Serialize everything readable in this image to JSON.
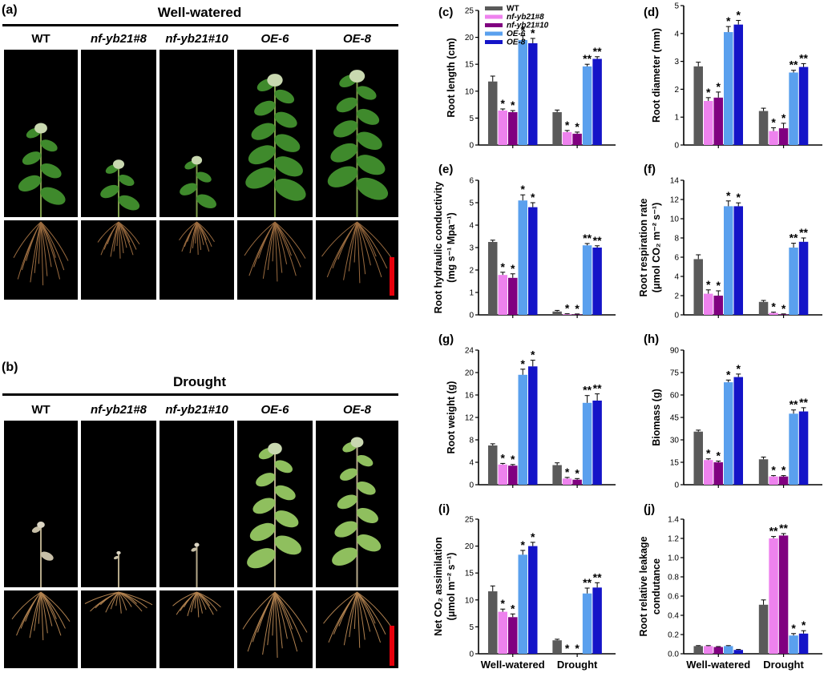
{
  "figure": {
    "conditions": [
      {
        "letter": "(a)",
        "title": "Well-watered"
      },
      {
        "letter": "(b)",
        "title": "Drought"
      }
    ],
    "genotypes": [
      "WT",
      "nf-yb21#8",
      "nf-yb21#10",
      "OE-6",
      "OE-8"
    ]
  },
  "colors": {
    "WT": "#5a5a5a",
    "nf-yb21#8": "#ee82ee",
    "nf-yb21#10": "#800080",
    "OE-6": "#5aa0ee",
    "OE-8": "#1414c8",
    "scale_bar": "#e8000b"
  },
  "chart_data": [
    {
      "letter": "(c)",
      "type": "bar",
      "ylabel": "Root length (cm)",
      "categories": [
        "Well-watered",
        "Drought"
      ],
      "ylim": [
        0,
        25
      ],
      "yticks": [
        0,
        5,
        10,
        15,
        20,
        25
      ],
      "legend": true,
      "series": [
        {
          "name": "WT",
          "values": [
            11.8,
            6.1
          ],
          "errors": [
            1.0,
            0.4
          ],
          "sig": [
            "",
            ""
          ]
        },
        {
          "name": "nf-yb21#8",
          "values": [
            6.4,
            2.4
          ],
          "errors": [
            0.3,
            0.3
          ],
          "sig": [
            "*",
            "*"
          ]
        },
        {
          "name": "nf-yb21#10",
          "values": [
            6.1,
            2.1
          ],
          "errors": [
            0.3,
            0.3
          ],
          "sig": [
            "*",
            "*"
          ]
        },
        {
          "name": "OE-6",
          "values": [
            19.5,
            14.6
          ],
          "errors": [
            0.8,
            0.4
          ],
          "sig": [
            "*",
            "**"
          ]
        },
        {
          "name": "OE-8",
          "values": [
            18.9,
            16.0
          ],
          "errors": [
            0.9,
            0.4
          ],
          "sig": [
            "*",
            "**"
          ]
        }
      ]
    },
    {
      "letter": "(d)",
      "type": "bar",
      "ylabel": "Root diameter (mm)",
      "categories": [
        "Well-watered",
        "Drought"
      ],
      "ylim": [
        0,
        5
      ],
      "yticks": [
        0,
        1,
        2,
        3,
        4,
        5
      ],
      "legend": false,
      "series": [
        {
          "name": "WT",
          "values": [
            2.82,
            1.22
          ],
          "errors": [
            0.15,
            0.1
          ],
          "sig": [
            "",
            ""
          ]
        },
        {
          "name": "nf-yb21#8",
          "values": [
            1.58,
            0.5
          ],
          "errors": [
            0.12,
            0.12
          ],
          "sig": [
            "*",
            "*"
          ]
        },
        {
          "name": "nf-yb21#10",
          "values": [
            1.7,
            0.6
          ],
          "errors": [
            0.2,
            0.18
          ],
          "sig": [
            "*",
            "*"
          ]
        },
        {
          "name": "OE-6",
          "values": [
            4.05,
            2.6
          ],
          "errors": [
            0.2,
            0.08
          ],
          "sig": [
            "*",
            "**"
          ]
        },
        {
          "name": "OE-8",
          "values": [
            4.32,
            2.8
          ],
          "errors": [
            0.15,
            0.12
          ],
          "sig": [
            "*",
            "**"
          ]
        }
      ]
    },
    {
      "letter": "(e)",
      "type": "bar",
      "ylabel": "Root hydraulic conductivity",
      "ylabel2": "(mg s⁻¹ Mpa⁻¹)",
      "categories": [
        "Well-watered",
        "Drought"
      ],
      "ylim": [
        0,
        6
      ],
      "yticks": [
        0,
        1,
        2,
        3,
        4,
        5,
        6
      ],
      "legend": false,
      "series": [
        {
          "name": "WT",
          "values": [
            3.25,
            0.15
          ],
          "errors": [
            0.08,
            0.05
          ],
          "sig": [
            "",
            ""
          ]
        },
        {
          "name": "nf-yb21#8",
          "values": [
            1.78,
            0.03
          ],
          "errors": [
            0.12,
            0.02
          ],
          "sig": [
            "*",
            "*"
          ]
        },
        {
          "name": "nf-yb21#10",
          "values": [
            1.65,
            0.02
          ],
          "errors": [
            0.18,
            0.02
          ],
          "sig": [
            "*",
            "*"
          ]
        },
        {
          "name": "OE-6",
          "values": [
            5.1,
            3.1
          ],
          "errors": [
            0.25,
            0.08
          ],
          "sig": [
            "*",
            "**"
          ]
        },
        {
          "name": "OE-8",
          "values": [
            4.8,
            3.0
          ],
          "errors": [
            0.2,
            0.08
          ],
          "sig": [
            "*",
            "**"
          ]
        }
      ]
    },
    {
      "letter": "(f)",
      "type": "bar",
      "ylabel": "Root respiration rate",
      "ylabel2": "(μmol CO₂ m⁻² s⁻¹)",
      "categories": [
        "Well-watered",
        "Drought"
      ],
      "ylim": [
        0,
        14
      ],
      "yticks": [
        0,
        2,
        4,
        6,
        8,
        10,
        12,
        14
      ],
      "legend": false,
      "series": [
        {
          "name": "WT",
          "values": [
            5.8,
            1.35
          ],
          "errors": [
            0.45,
            0.15
          ],
          "sig": [
            "",
            ""
          ]
        },
        {
          "name": "nf-yb21#8",
          "values": [
            2.2,
            0.2
          ],
          "errors": [
            0.4,
            0.08
          ],
          "sig": [
            "*",
            "*"
          ]
        },
        {
          "name": "nf-yb21#10",
          "values": [
            2.0,
            0.05
          ],
          "errors": [
            0.5,
            0.05
          ],
          "sig": [
            "*",
            "*"
          ]
        },
        {
          "name": "OE-6",
          "values": [
            11.3,
            7.0
          ],
          "errors": [
            0.55,
            0.45
          ],
          "sig": [
            "*",
            "**"
          ]
        },
        {
          "name": "OE-8",
          "values": [
            11.3,
            7.6
          ],
          "errors": [
            0.35,
            0.4
          ],
          "sig": [
            "*",
            "**"
          ]
        }
      ]
    },
    {
      "letter": "(g)",
      "type": "bar",
      "ylabel": "Root weight (g)",
      "categories": [
        "Well-watered",
        "Drought"
      ],
      "ylim": [
        0,
        24
      ],
      "yticks": [
        0,
        4,
        8,
        12,
        16,
        20,
        24
      ],
      "legend": false,
      "series": [
        {
          "name": "WT",
          "values": [
            7.0,
            3.5
          ],
          "errors": [
            0.3,
            0.4
          ],
          "sig": [
            "",
            ""
          ]
        },
        {
          "name": "nf-yb21#8",
          "values": [
            3.6,
            1.1
          ],
          "errors": [
            0.2,
            0.2
          ],
          "sig": [
            "*",
            "*"
          ]
        },
        {
          "name": "nf-yb21#10",
          "values": [
            3.4,
            0.9
          ],
          "errors": [
            0.2,
            0.2
          ],
          "sig": [
            "*",
            "*"
          ]
        },
        {
          "name": "OE-6",
          "values": [
            19.6,
            14.6
          ],
          "errors": [
            1.0,
            1.3
          ],
          "sig": [
            "*",
            "**"
          ]
        },
        {
          "name": "OE-8",
          "values": [
            21.1,
            15.0
          ],
          "errors": [
            1.1,
            1.2
          ],
          "sig": [
            "*",
            "**"
          ]
        }
      ]
    },
    {
      "letter": "(h)",
      "type": "bar",
      "ylabel": "Biomass (g)",
      "categories": [
        "Well-watered",
        "Drought"
      ],
      "ylim": [
        0,
        90
      ],
      "yticks": [
        0,
        15,
        30,
        45,
        60,
        75,
        90
      ],
      "legend": false,
      "series": [
        {
          "name": "WT",
          "values": [
            35.5,
            17.0
          ],
          "errors": [
            1.0,
            1.5
          ],
          "sig": [
            "",
            ""
          ]
        },
        {
          "name": "nf-yb21#8",
          "values": [
            16.5,
            5.5
          ],
          "errors": [
            0.8,
            0.6
          ],
          "sig": [
            "*",
            "*"
          ]
        },
        {
          "name": "nf-yb21#10",
          "values": [
            15.0,
            5.5
          ],
          "errors": [
            0.8,
            0.6
          ],
          "sig": [
            "*",
            "*"
          ]
        },
        {
          "name": "OE-6",
          "values": [
            68.5,
            47.5
          ],
          "errors": [
            1.5,
            2.5
          ],
          "sig": [
            "*",
            "**"
          ]
        },
        {
          "name": "OE-8",
          "values": [
            72.0,
            49.0
          ],
          "errors": [
            2.0,
            2.5
          ],
          "sig": [
            "*",
            "**"
          ]
        }
      ]
    },
    {
      "letter": "(i)",
      "type": "bar",
      "ylabel": "Net CO₂ assimilation",
      "ylabel2": "(μmol m⁻² s⁻¹)",
      "categories": [
        "Well-watered",
        "Drought"
      ],
      "ylim": [
        0,
        25
      ],
      "yticks": [
        0,
        5,
        10,
        15,
        20,
        25
      ],
      "legend": false,
      "show_xlabels": true,
      "series": [
        {
          "name": "WT",
          "values": [
            11.6,
            2.5
          ],
          "errors": [
            1.0,
            0.2
          ],
          "sig": [
            "",
            ""
          ]
        },
        {
          "name": "nf-yb21#8",
          "values": [
            7.8,
            0.0
          ],
          "errors": [
            0.5,
            0.0
          ],
          "sig": [
            "*",
            "*"
          ]
        },
        {
          "name": "nf-yb21#10",
          "values": [
            6.8,
            0.0
          ],
          "errors": [
            0.6,
            0.0
          ],
          "sig": [
            "*",
            "*"
          ]
        },
        {
          "name": "OE-6",
          "values": [
            18.4,
            11.2
          ],
          "errors": [
            0.8,
            1.0
          ],
          "sig": [
            "*",
            "**"
          ]
        },
        {
          "name": "OE-8",
          "values": [
            20.0,
            12.3
          ],
          "errors": [
            0.7,
            0.9
          ],
          "sig": [
            "*",
            "**"
          ]
        }
      ]
    },
    {
      "letter": "(j)",
      "type": "bar",
      "ylabel": "Root relative leakage",
      "ylabel2": "condutance",
      "categories": [
        "Well-watered",
        "Drought"
      ],
      "ylim": [
        0,
        1.4
      ],
      "yticks": [
        0.0,
        0.2,
        0.4,
        0.6,
        0.8,
        1.0,
        1.2,
        1.4
      ],
      "tick_decimals": 1,
      "legend": false,
      "show_xlabels": true,
      "series": [
        {
          "name": "WT",
          "values": [
            0.08,
            0.51
          ],
          "errors": [
            0.005,
            0.05
          ],
          "sig": [
            "",
            ""
          ]
        },
        {
          "name": "nf-yb21#8",
          "values": [
            0.08,
            1.2
          ],
          "errors": [
            0.005,
            0.02
          ],
          "sig": [
            "",
            "**"
          ]
        },
        {
          "name": "nf-yb21#10",
          "values": [
            0.07,
            1.23
          ],
          "errors": [
            0.005,
            0.02
          ],
          "sig": [
            "",
            "**"
          ]
        },
        {
          "name": "OE-6",
          "values": [
            0.08,
            0.19
          ],
          "errors": [
            0.005,
            0.02
          ],
          "sig": [
            "",
            "*"
          ]
        },
        {
          "name": "OE-8",
          "values": [
            0.04,
            0.21
          ],
          "errors": [
            0.005,
            0.03
          ],
          "sig": [
            "",
            "*"
          ]
        }
      ]
    }
  ]
}
